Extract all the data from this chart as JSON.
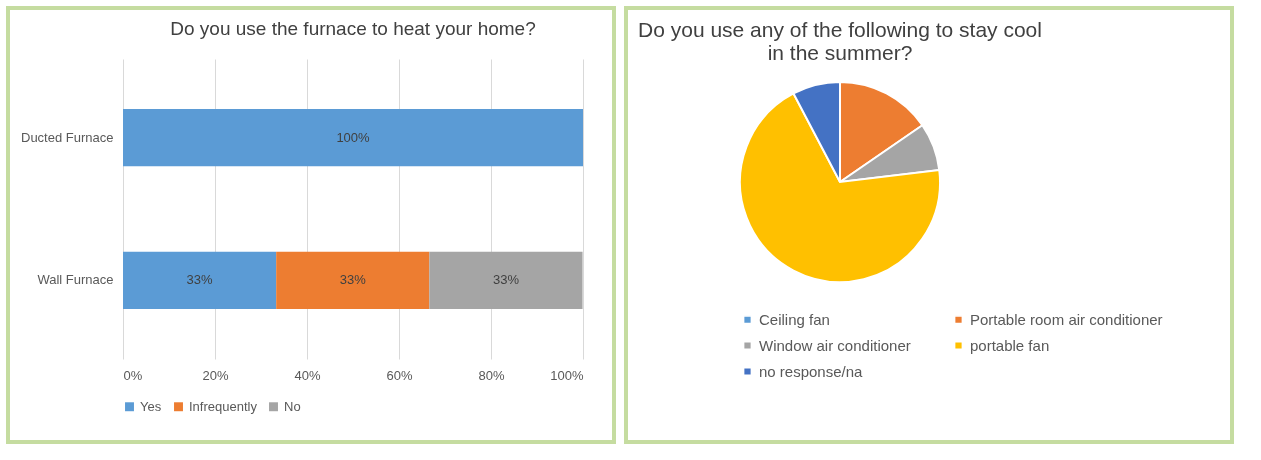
{
  "chart_data": [
    {
      "type": "bar",
      "orientation": "horizontal",
      "stacked": true,
      "title": "Do you use the furnace to heat your home?",
      "categories": [
        "Ducted Furnace",
        "Wall Furnace"
      ],
      "series": [
        {
          "name": "Yes",
          "color": "#5b9bd5",
          "values": [
            100,
            33.3
          ],
          "value_labels": [
            "100%",
            "33%"
          ]
        },
        {
          "name": "Infrequently",
          "color": "#ed7d31",
          "values": [
            0,
            33.3
          ],
          "value_labels": [
            null,
            "33%"
          ]
        },
        {
          "name": "No",
          "color": "#a5a5a5",
          "values": [
            0,
            33.3
          ],
          "value_labels": [
            null,
            "33%"
          ]
        }
      ],
      "xlim": [
        0,
        100
      ],
      "xticks": [
        {
          "value": 0,
          "label": "0%"
        },
        {
          "value": 20,
          "label": "20%"
        },
        {
          "value": 40,
          "label": "40%"
        },
        {
          "value": 60,
          "label": "60%"
        },
        {
          "value": 80,
          "label": "80%"
        },
        {
          "value": 100,
          "label": "100%"
        }
      ],
      "grid": "x",
      "legend": "bottom"
    },
    {
      "type": "pie",
      "title": "Do you use any of the following to stay cool in the summer?",
      "categories": [
        "Ceiling fan",
        "Portable room air conditioner",
        "Window air conditioner",
        "portable fan",
        "no response/na"
      ],
      "values": [
        0,
        15.4,
        7.7,
        69.2,
        7.7
      ],
      "colors": [
        "#5b9bd5",
        "#ed7d31",
        "#a5a5a5",
        "#ffc000",
        "#4472c4"
      ],
      "legend": "bottom"
    }
  ]
}
